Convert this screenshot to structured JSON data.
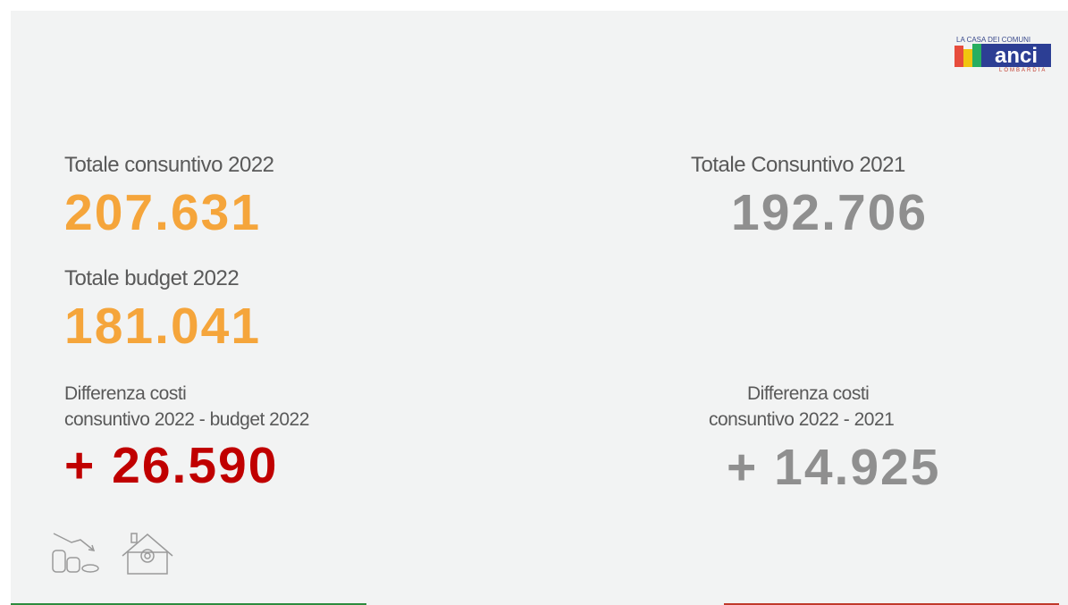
{
  "logo": {
    "top": "LA CASA DEI COMUNI",
    "main": "anci",
    "sub": "LOMBARDIA"
  },
  "left": {
    "consuntivo_label": "Totale consuntivo 2022",
    "consuntivo_value": "207.631",
    "budget_label": "Totale budget 2022",
    "budget_value": "181.041",
    "diff_label_1": "Differenza costi",
    "diff_label_2": "consuntivo 2022 - budget 2022",
    "diff_value": "+ 26.590"
  },
  "right": {
    "consuntivo_label": "Totale Consuntivo 2021",
    "consuntivo_value": "192.706",
    "diff_label_1": "Differenza costi",
    "diff_label_2": "consuntivo 2022 - 2021",
    "diff_value": "+ 14.925"
  }
}
